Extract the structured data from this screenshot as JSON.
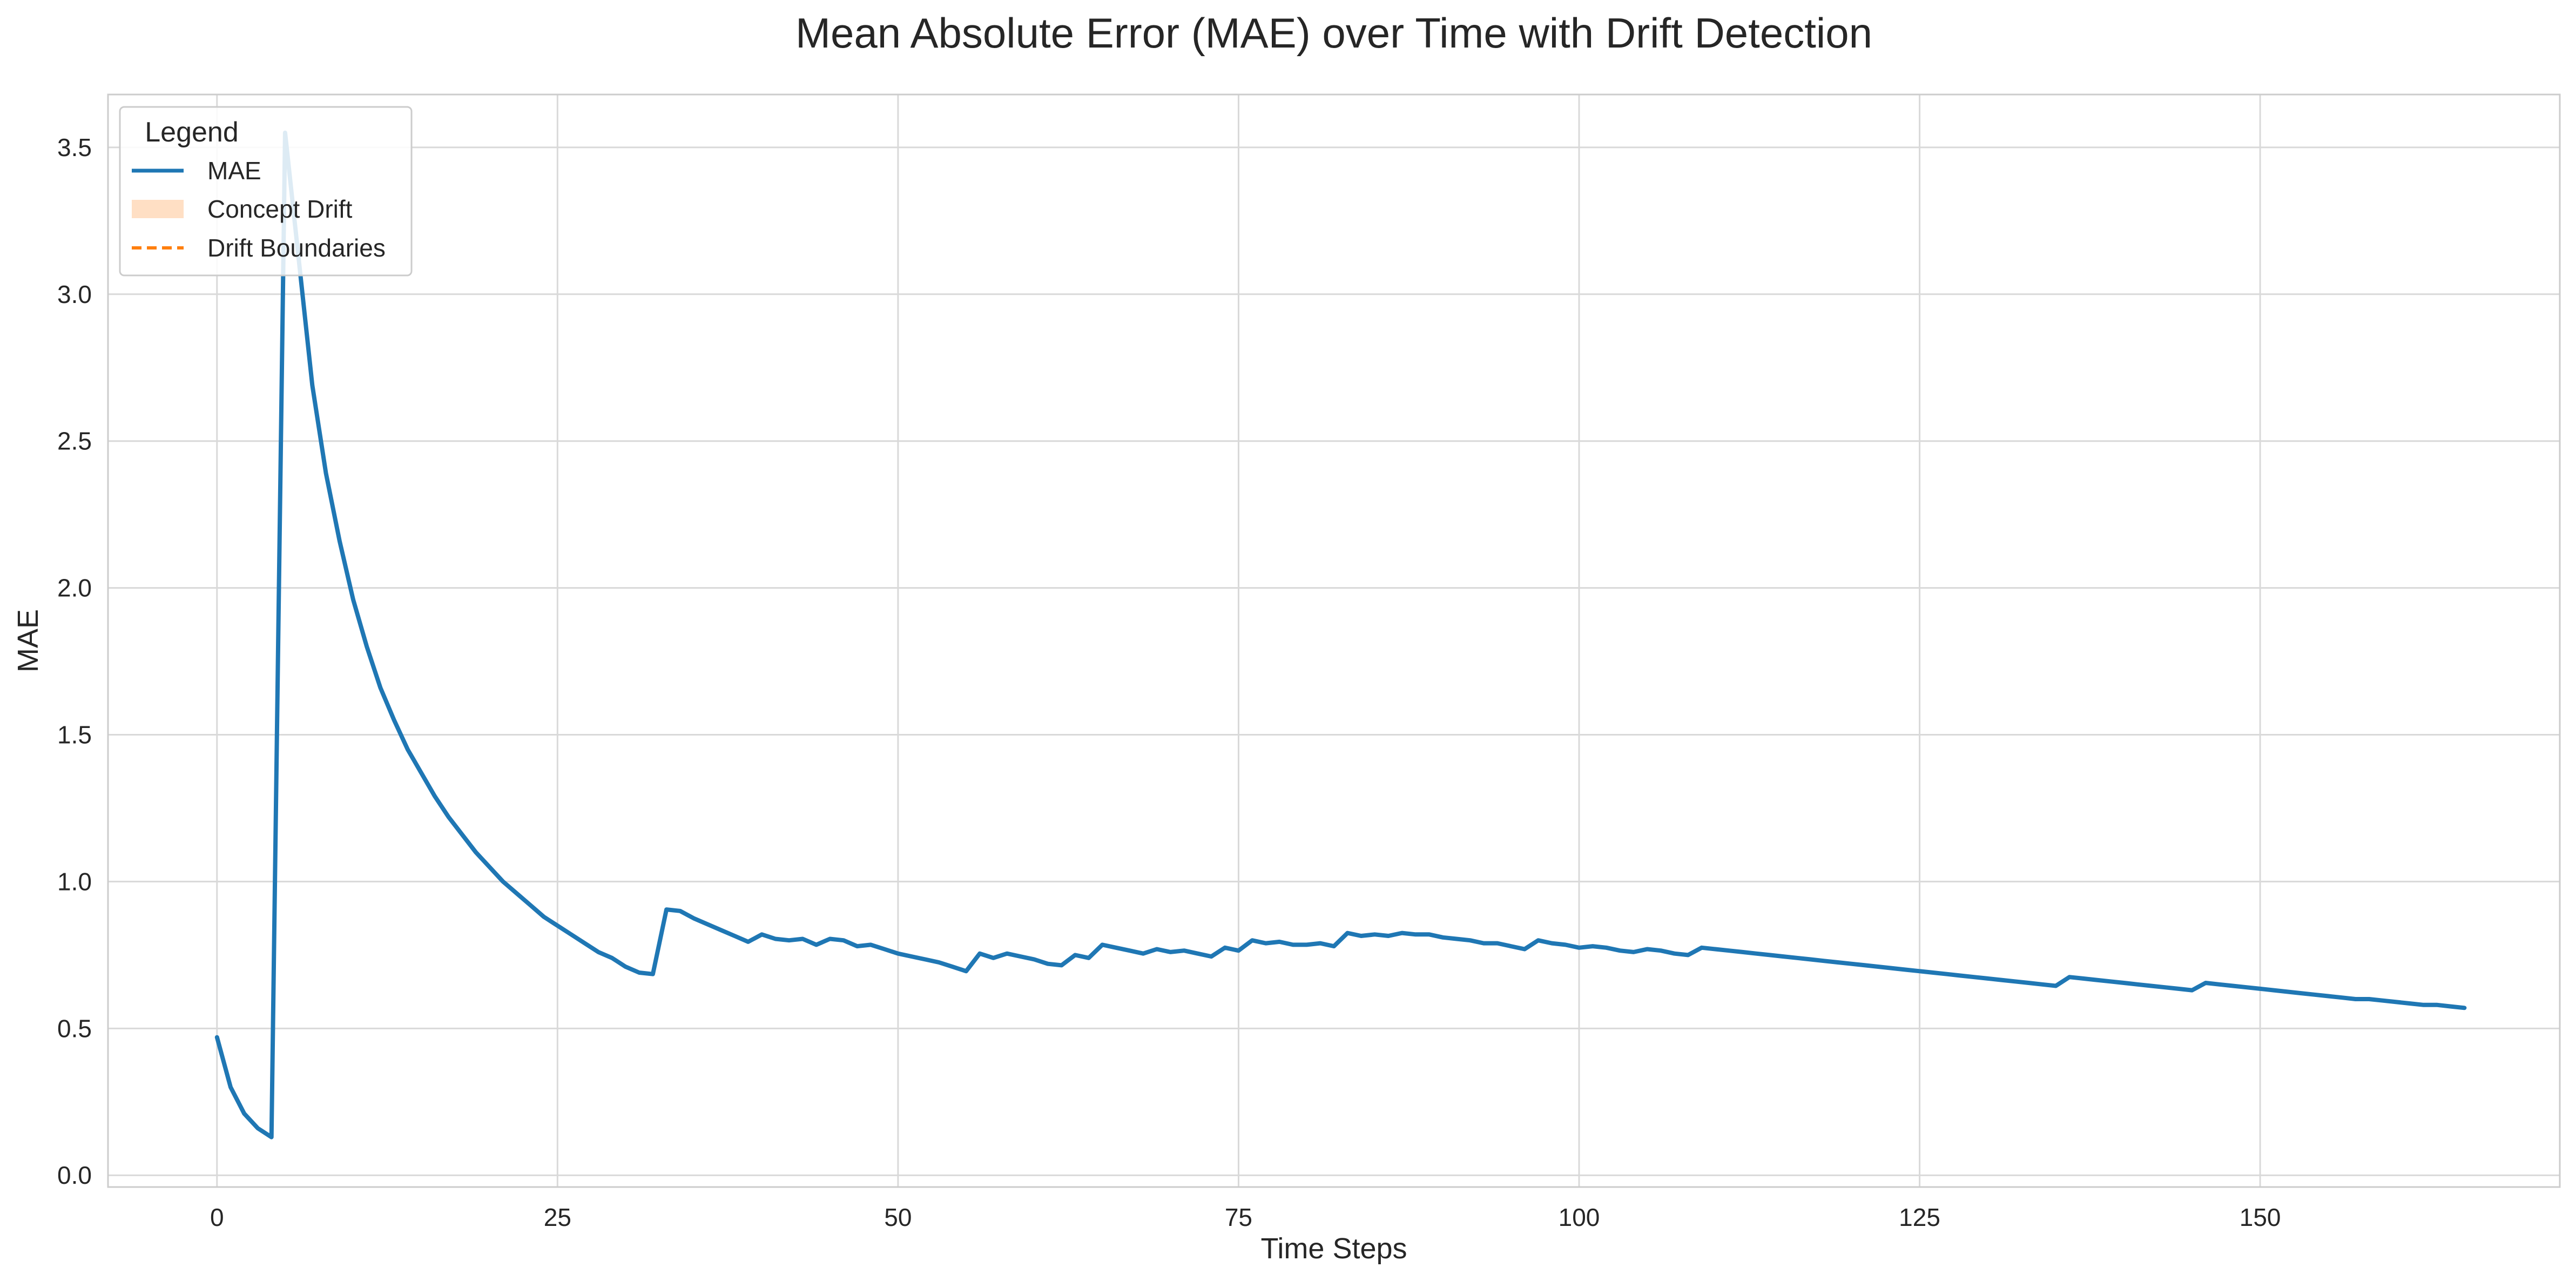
{
  "chart_data": {
    "type": "line",
    "title": "Mean Absolute Error (MAE) over Time with Drift Detection",
    "xlabel": "Time Steps",
    "ylabel": "MAE",
    "xlim": [
      -8,
      172
    ],
    "ylim": [
      -0.04,
      3.68
    ],
    "xticks": [
      0,
      25,
      50,
      75,
      100,
      125,
      150
    ],
    "yticks": [
      0.0,
      0.5,
      1.0,
      1.5,
      2.0,
      2.5,
      3.0,
      3.5
    ],
    "grid": true,
    "legend": {
      "title": "Legend",
      "placement": "top-left",
      "entries": [
        "MAE",
        "Concept Drift",
        "Drift Boundaries"
      ]
    },
    "colors": {
      "mae": "#1f77b4",
      "concept_drift": "#ffdfc4",
      "drift_boundaries": "#ff7f0e",
      "grid": "#d9d9d9"
    },
    "series": [
      {
        "name": "MAE",
        "x": [
          0,
          1,
          2,
          3,
          4,
          5,
          6,
          7,
          8,
          9,
          10,
          11,
          12,
          13,
          14,
          15,
          16,
          17,
          18,
          19,
          20,
          21,
          22,
          23,
          24,
          25,
          26,
          27,
          28,
          29,
          30,
          31,
          32,
          33,
          34,
          35,
          36,
          37,
          38,
          39,
          40,
          41,
          42,
          43,
          44,
          45,
          46,
          47,
          48,
          49,
          50,
          51,
          52,
          53,
          54,
          55,
          56,
          57,
          58,
          59,
          60,
          61,
          62,
          63,
          64,
          65,
          66,
          67,
          68,
          69,
          70,
          71,
          72,
          73,
          74,
          75,
          76,
          77,
          78,
          79,
          80,
          81,
          82,
          83,
          84,
          85,
          86,
          87,
          88,
          89,
          90,
          91,
          92,
          93,
          94,
          95,
          96,
          97,
          98,
          99,
          100,
          101,
          102,
          103,
          104,
          105,
          106,
          107,
          108,
          109,
          110,
          111,
          112,
          113,
          114,
          115,
          116,
          117,
          118,
          119,
          120,
          121,
          122,
          123,
          124,
          125,
          126,
          127,
          128,
          129,
          130,
          131,
          132,
          133,
          134,
          135,
          136,
          137,
          138,
          139,
          140,
          141,
          142,
          143,
          144,
          145,
          146,
          147,
          148,
          149,
          150,
          151,
          152,
          153,
          154,
          155,
          156,
          157,
          158,
          159,
          160,
          161,
          162,
          163,
          164,
          165
        ],
        "values": [
          0.47,
          0.3,
          0.21,
          0.16,
          0.13,
          3.55,
          3.12,
          2.69,
          2.39,
          2.16,
          1.96,
          1.8,
          1.66,
          1.55,
          1.45,
          1.37,
          1.29,
          1.22,
          1.16,
          1.1,
          1.05,
          1.0,
          0.96,
          0.92,
          0.88,
          0.85,
          0.82,
          0.79,
          0.76,
          0.74,
          0.71,
          0.69,
          0.685,
          0.905,
          0.9,
          0.875,
          0.855,
          0.835,
          0.815,
          0.795,
          0.82,
          0.805,
          0.8,
          0.805,
          0.785,
          0.805,
          0.8,
          0.78,
          0.785,
          0.77,
          0.755,
          0.745,
          0.735,
          0.725,
          0.71,
          0.695,
          0.755,
          0.74,
          0.755,
          0.745,
          0.735,
          0.72,
          0.715,
          0.75,
          0.74,
          0.785,
          0.775,
          0.765,
          0.755,
          0.77,
          0.76,
          0.765,
          0.755,
          0.745,
          0.775,
          0.765,
          0.8,
          0.79,
          0.795,
          0.785,
          0.785,
          0.79,
          0.78,
          0.825,
          0.815,
          0.82,
          0.815,
          0.825,
          0.82,
          0.82,
          0.81,
          0.805,
          0.8,
          0.79,
          0.79,
          0.78,
          0.77,
          0.8,
          0.79,
          0.785,
          0.775,
          0.78,
          0.775,
          0.765,
          0.76,
          0.77,
          0.765,
          0.755,
          0.75,
          0.775,
          0.77,
          0.765,
          0.76,
          0.755,
          0.75,
          0.745,
          0.74,
          0.735,
          0.73,
          0.725,
          0.72,
          0.715,
          0.71,
          0.705,
          0.7,
          0.695,
          0.69,
          0.685,
          0.68,
          0.675,
          0.67,
          0.665,
          0.66,
          0.655,
          0.65,
          0.645,
          0.675,
          0.67,
          0.665,
          0.66,
          0.655,
          0.65,
          0.645,
          0.64,
          0.635,
          0.63,
          0.655,
          0.65,
          0.645,
          0.64,
          0.635,
          0.63,
          0.625,
          0.62,
          0.615,
          0.61,
          0.605,
          0.6,
          0.6,
          0.595,
          0.59,
          0.585,
          0.58,
          0.58,
          0.575,
          0.57
        ]
      }
    ]
  }
}
